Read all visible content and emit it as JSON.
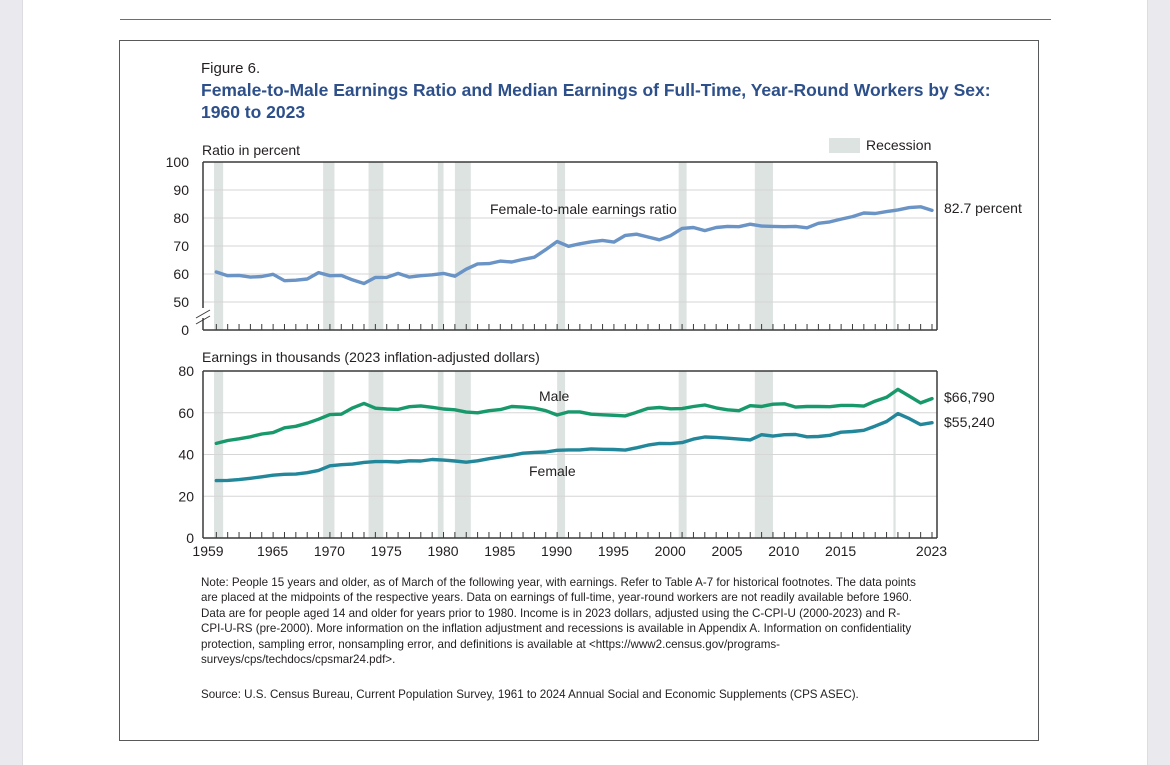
{
  "figure": {
    "label": "Figure 6.",
    "title": "Female-to-Male Earnings Ratio and Median Earnings of Full-Time, Year-Round Workers by Sex: 1960 to 2023",
    "note": "Note: People 15 years and older, as of March of the following year, with earnings. Refer to Table A-7 for historical footnotes. The data points are placed at the midpoints of the respective years. Data on earnings of full-time, year-round workers are not readily available before 1960. Data are for people aged 14 and older for years prior to 1980. Income is in 2023 dollars, adjusted using the C-CPI-U (2000-2023) and R-CPI-U-RS (pre-2000). More information on the inflation adjustment and recessions is available in Appendix A. Information on confidentiality protection, sampling error, nonsampling error, and definitions is available at <https://www2.census.gov/programs-surveys/cps/techdocs/cpsmar24.pdf>.",
    "source": "Source: U.S. Census Bureau, Current Population Survey, 1961 to 2024 Annual Social and Economic Supplements (CPS ASEC)."
  },
  "colors": {
    "ratio": "#6a93c6",
    "male": "#17996b",
    "female": "#22879a",
    "recession": "#dde3e1",
    "grid": "#d6d6d6",
    "axis": "#3a3a3a"
  },
  "chart_data": [
    {
      "type": "line",
      "title": "Female-to-male earnings ratio",
      "ylabel": "Ratio in percent",
      "xlabel": "",
      "ylim": [
        0,
        100
      ],
      "axis_break": [
        0,
        50
      ],
      "yticks": [
        0,
        50,
        60,
        70,
        80,
        90,
        100
      ],
      "grid": true,
      "legend": {
        "label": "Recession",
        "placement": "top-right"
      },
      "end_label": "82.7 percent",
      "series_label": "Female-to-male earnings ratio",
      "x": [
        1960,
        1961,
        1962,
        1963,
        1964,
        1965,
        1966,
        1967,
        1968,
        1969,
        1970,
        1971,
        1972,
        1973,
        1974,
        1975,
        1976,
        1977,
        1978,
        1979,
        1980,
        1981,
        1982,
        1983,
        1984,
        1985,
        1986,
        1987,
        1988,
        1989,
        1990,
        1991,
        1992,
        1993,
        1994,
        1995,
        1996,
        1997,
        1998,
        1999,
        2000,
        2001,
        2002,
        2003,
        2004,
        2005,
        2006,
        2007,
        2008,
        2009,
        2010,
        2011,
        2012,
        2013,
        2014,
        2015,
        2016,
        2017,
        2018,
        2019,
        2020,
        2021,
        2022,
        2023
      ],
      "series": [
        {
          "name": "Female-to-male earnings ratio",
          "values": [
            60.7,
            59.4,
            59.5,
            58.9,
            59.1,
            59.9,
            57.6,
            57.8,
            58.2,
            60.5,
            59.4,
            59.5,
            57.9,
            56.6,
            58.8,
            58.8,
            60.2,
            58.9,
            59.4,
            59.7,
            60.2,
            59.2,
            61.7,
            63.6,
            63.7,
            64.6,
            64.3,
            65.2,
            66.0,
            68.7,
            71.6,
            69.9,
            70.8,
            71.5,
            72.0,
            71.4,
            73.8,
            74.2,
            73.2,
            72.2,
            73.7,
            76.3,
            76.6,
            75.5,
            76.6,
            77.0,
            76.9,
            77.8,
            77.1,
            77.0,
            76.9,
            77.0,
            76.5,
            78.1,
            78.6,
            79.6,
            80.5,
            81.8,
            81.6,
            82.3,
            82.9,
            83.7,
            84.0,
            82.7
          ]
        }
      ]
    },
    {
      "type": "line",
      "title": "Median earnings of full-time, year-round workers by sex",
      "ylabel": "Earnings in thousands (2023 inflation-adjusted dollars)",
      "xlabel": "",
      "ylim": [
        0,
        80
      ],
      "yticks": [
        0,
        20,
        40,
        60,
        80
      ],
      "xticks": [
        "1959",
        "1965",
        "1970",
        "1975",
        "1980",
        "1985",
        "1990",
        "1995",
        "2000",
        "2005",
        "2010",
        "2015",
        "2023"
      ],
      "xlim": [
        1959,
        2023
      ],
      "grid": true,
      "x": [
        1960,
        1961,
        1962,
        1963,
        1964,
        1965,
        1966,
        1967,
        1968,
        1969,
        1970,
        1971,
        1972,
        1973,
        1974,
        1975,
        1976,
        1977,
        1978,
        1979,
        1980,
        1981,
        1982,
        1983,
        1984,
        1985,
        1986,
        1987,
        1988,
        1989,
        1990,
        1991,
        1992,
        1993,
        1994,
        1995,
        1996,
        1997,
        1998,
        1999,
        2000,
        2001,
        2002,
        2003,
        2004,
        2005,
        2006,
        2007,
        2008,
        2009,
        2010,
        2011,
        2012,
        2013,
        2014,
        2015,
        2016,
        2017,
        2018,
        2019,
        2020,
        2021,
        2022,
        2023
      ],
      "series": [
        {
          "name": "Male",
          "end_label": "$66,790",
          "values": [
            45.3,
            46.7,
            47.5,
            48.5,
            49.8,
            50.5,
            52.8,
            53.5,
            55.0,
            56.9,
            59.1,
            59.3,
            62.3,
            64.5,
            62.2,
            61.8,
            61.6,
            62.9,
            63.3,
            62.6,
            61.8,
            61.4,
            60.3,
            60.0,
            61.0,
            61.5,
            63.0,
            62.7,
            62.2,
            61.0,
            58.9,
            60.4,
            60.4,
            59.3,
            59.0,
            58.8,
            58.5,
            60.2,
            62.1,
            62.5,
            61.9,
            62.0,
            63.0,
            63.7,
            62.3,
            61.4,
            61.0,
            63.4,
            63.0,
            64.1,
            64.3,
            62.7,
            63.0,
            63.0,
            62.9,
            63.5,
            63.5,
            63.2,
            65.6,
            67.4,
            71.2,
            68.0,
            64.7,
            66.79
          ]
        },
        {
          "name": "Female",
          "end_label": "$55,240",
          "values": [
            27.5,
            27.6,
            28.0,
            28.6,
            29.3,
            30.1,
            30.5,
            30.6,
            31.3,
            32.4,
            34.6,
            35.1,
            35.4,
            36.2,
            36.6,
            36.6,
            36.4,
            37.0,
            36.9,
            37.6,
            37.3,
            36.9,
            36.3,
            37.0,
            38.0,
            38.8,
            39.6,
            40.6,
            41.0,
            41.2,
            42.0,
            42.2,
            42.2,
            42.7,
            42.5,
            42.4,
            42.1,
            43.2,
            44.5,
            45.3,
            45.2,
            45.7,
            47.4,
            48.4,
            48.2,
            47.8,
            47.4,
            47.0,
            49.5,
            48.8,
            49.5,
            49.6,
            48.5,
            48.6,
            49.2,
            50.7,
            51.0,
            51.6,
            53.6,
            55.8,
            59.6,
            57.2,
            54.3,
            55.24
          ]
        }
      ]
    }
  ],
  "recessions": [
    [
      1960.3,
      1961.1
    ],
    [
      1969.9,
      1970.9
    ],
    [
      1973.9,
      1975.2
    ],
    [
      1980.0,
      1980.5
    ],
    [
      1981.5,
      1982.9
    ],
    [
      1990.5,
      1991.2
    ],
    [
      2001.2,
      2001.9
    ],
    [
      2007.9,
      2009.5
    ],
    [
      2020.1,
      2020.3
    ]
  ]
}
